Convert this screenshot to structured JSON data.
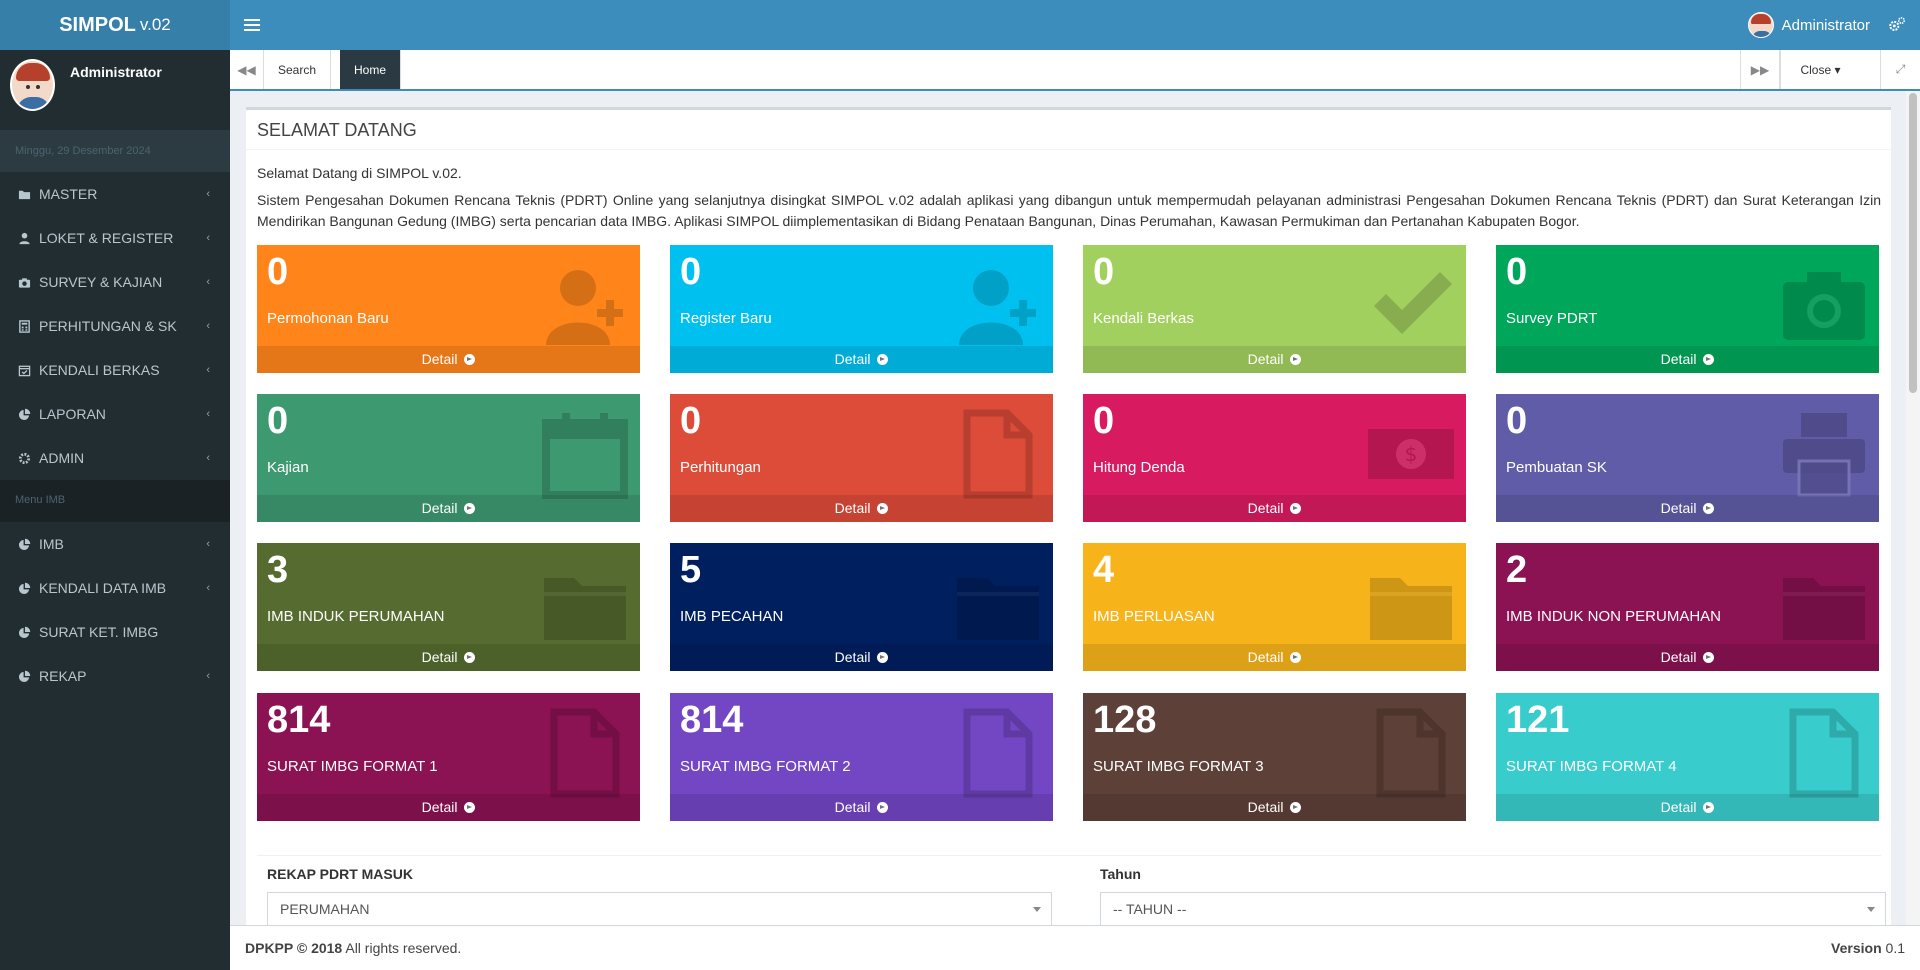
{
  "app": {
    "name": "SIMPOL",
    "version": "v.02"
  },
  "header": {
    "user": "Administrator"
  },
  "sidebar": {
    "user": "Administrator",
    "date": "Minggu, 29 Desember 2024",
    "items": [
      {
        "label": "MASTER",
        "icon": "folder-icon"
      },
      {
        "label": "LOKET & REGISTER",
        "icon": "user-icon"
      },
      {
        "label": "SURVEY & KAJIAN",
        "icon": "camera-icon"
      },
      {
        "label": "PERHITUNGAN & SK",
        "icon": "calculator-icon"
      },
      {
        "label": "KENDALI BERKAS",
        "icon": "calendar-check-icon"
      },
      {
        "label": "LAPORAN",
        "icon": "pie-chart-icon"
      },
      {
        "label": "ADMIN",
        "icon": "gear-icon"
      }
    ],
    "section2": "Menu IMB",
    "items2": [
      {
        "label": "IMB",
        "icon": "pie-chart-icon"
      },
      {
        "label": "KENDALI DATA IMB",
        "icon": "pie-chart-icon"
      },
      {
        "label": "SURAT KET. IMBG",
        "icon": "pie-chart-icon"
      },
      {
        "label": "REKAP",
        "icon": "pie-chart-icon"
      }
    ]
  },
  "tabs": {
    "items": [
      "Search",
      "Home"
    ],
    "active": "Home",
    "close": "Close"
  },
  "box": {
    "title": "SELAMAT DATANG",
    "intro1": "Selamat Datang di SIMPOL v.02.",
    "intro2": "Sistem Pengesahan Dokumen Rencana Teknis (PDRT) Online yang selanjutnya disingkat SIMPOL v.02 adalah aplikasi yang dibangun untuk mempermudah pelayanan administrasi Pengesahan Dokumen Rencana Teknis (PDRT) dan Surat Keterangan Izin Mendirikan Bangunan Gedung (IMBG) serta pencarian data IMBG. Aplikasi SIMPOL diimplementasikan di Bidang Penataan Bangunan, Dinas Perumahan, Kawasan Permukiman dan Pertanahan Kabupaten Bogor."
  },
  "tiles": [
    {
      "value": "0",
      "label": "Permohonan Baru",
      "color": "#ff851b",
      "icon": "user-plus-icon"
    },
    {
      "value": "0",
      "label": "Register Baru",
      "color": "#00c0ef",
      "icon": "user-plus-icon"
    },
    {
      "value": "0",
      "label": "Kendali Berkas",
      "color": "#a2d05e",
      "icon": "check-icon"
    },
    {
      "value": "0",
      "label": "Survey PDRT",
      "color": "#00a65a",
      "icon": "camera-icon"
    },
    {
      "value": "0",
      "label": "Kajian",
      "color": "#3d9970",
      "icon": "calendar-icon"
    },
    {
      "value": "0",
      "label": "Perhitungan",
      "color": "#dd4b39",
      "icon": "file-icon"
    },
    {
      "value": "0",
      "label": "Hitung Denda",
      "color": "#d81b60",
      "icon": "money-icon"
    },
    {
      "value": "0",
      "label": "Pembuatan SK",
      "color": "#605ca8",
      "icon": "printer-icon"
    },
    {
      "value": "3",
      "label": "IMB INDUK PERUMAHAN",
      "color": "#556b2f",
      "icon": "folder-icon"
    },
    {
      "value": "5",
      "label": "IMB PECAHAN",
      "color": "#001f5f",
      "icon": "folder-icon"
    },
    {
      "value": "4",
      "label": "IMB PERLUASAN",
      "color": "#f6b41a",
      "icon": "folder-icon"
    },
    {
      "value": "2",
      "label": "IMB INDUK NON PERUMAHAN",
      "color": "#8b1253",
      "icon": "folder-icon"
    },
    {
      "value": "814",
      "label": "SURAT IMBG FORMAT 1",
      "color": "#8b1253",
      "icon": "file-icon"
    },
    {
      "value": "814",
      "label": "SURAT IMBG FORMAT 2",
      "color": "#7346c4",
      "icon": "file-icon"
    },
    {
      "value": "128",
      "label": "SURAT IMBG FORMAT 3",
      "color": "#5d4037",
      "icon": "file-icon"
    },
    {
      "value": "121",
      "label": "SURAT IMBG FORMAT 4",
      "color": "#39cccc",
      "icon": "file-icon"
    }
  ],
  "tile_footer": "Detail",
  "form": {
    "rekap_label": "REKAP PDRT MASUK",
    "rekap_value": "PERUMAHAN",
    "tahun_label": "Tahun",
    "tahun_value": "-- TAHUN --"
  },
  "footer": {
    "copyright": "DPKPP © 2018",
    "rights": " All rights reserved.",
    "version_label": "Version",
    "version": " 0.1"
  }
}
